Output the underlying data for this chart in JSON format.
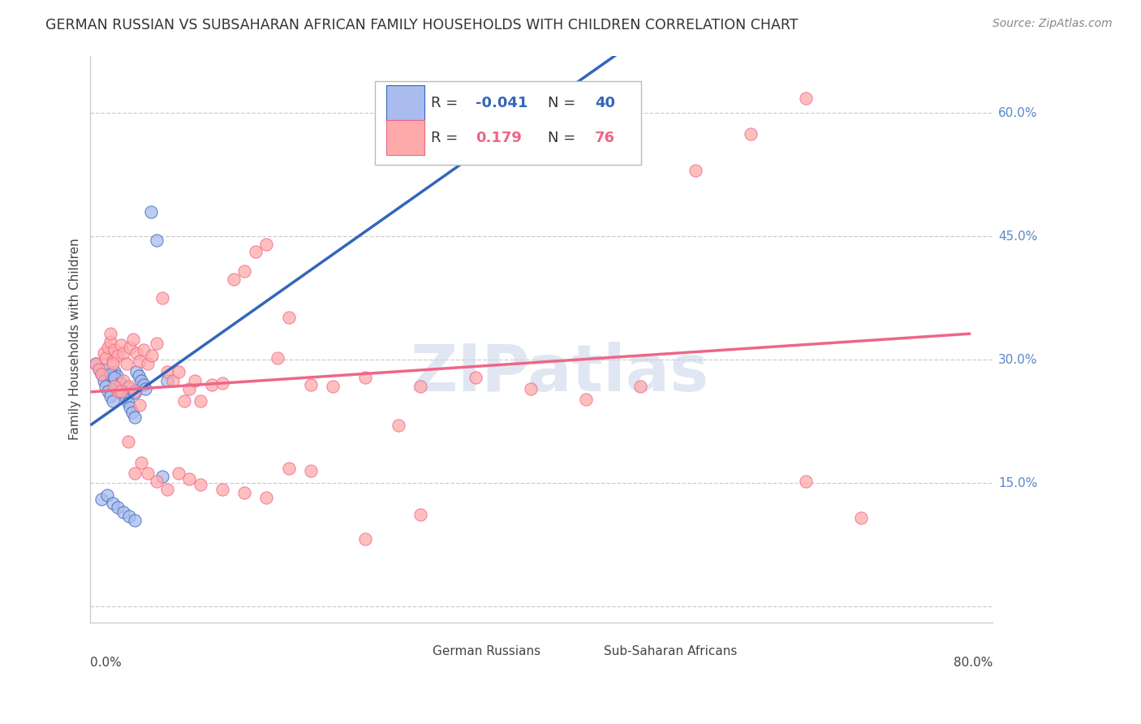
{
  "title": "GERMAN RUSSIAN VS SUBSAHARAN AFRICAN FAMILY HOUSEHOLDS WITH CHILDREN CORRELATION CHART",
  "source": "Source: ZipAtlas.com",
  "ylabel": "Family Households with Children",
  "xlim": [
    0.0,
    0.82
  ],
  "ylim": [
    -0.02,
    0.67
  ],
  "ytick_vals": [
    0.0,
    0.15,
    0.3,
    0.45,
    0.6
  ],
  "ytick_labels": [
    "",
    "15.0%",
    "30.0%",
    "45.0%",
    "60.0%"
  ],
  "color_blue_fill": "#AABBEE",
  "color_blue_line": "#3366BB",
  "color_pink_fill": "#FFAAAA",
  "color_pink_line": "#EE6688",
  "color_ytick": "#5588CC",
  "watermark": "ZIPatlas",
  "legend_R1": "-0.041",
  "legend_N1": "40",
  "legend_R2": "0.179",
  "legend_N2": "76",
  "gr_x": [
    0.005,
    0.008,
    0.01,
    0.012,
    0.014,
    0.016,
    0.018,
    0.02,
    0.022,
    0.024,
    0.026,
    0.028,
    0.03,
    0.032,
    0.034,
    0.036,
    0.038,
    0.04,
    0.042,
    0.044,
    0.046,
    0.048,
    0.05,
    0.055,
    0.06,
    0.065,
    0.07,
    0.01,
    0.015,
    0.02,
    0.025,
    0.03,
    0.035,
    0.04,
    0.012,
    0.018,
    0.022,
    0.028,
    0.034,
    0.04
  ],
  "gr_y": [
    0.295,
    0.288,
    0.282,
    0.275,
    0.268,
    0.262,
    0.256,
    0.25,
    0.285,
    0.28,
    0.272,
    0.266,
    0.26,
    0.254,
    0.248,
    0.242,
    0.236,
    0.23,
    0.285,
    0.28,
    0.275,
    0.27,
    0.265,
    0.48,
    0.445,
    0.158,
    0.275,
    0.13,
    0.135,
    0.125,
    0.12,
    0.115,
    0.11,
    0.105,
    0.288,
    0.282,
    0.278,
    0.272,
    0.266,
    0.26
  ],
  "ssa_x": [
    0.005,
    0.008,
    0.01,
    0.012,
    0.014,
    0.016,
    0.018,
    0.02,
    0.022,
    0.025,
    0.028,
    0.03,
    0.033,
    0.036,
    0.039,
    0.042,
    0.045,
    0.048,
    0.052,
    0.056,
    0.06,
    0.065,
    0.07,
    0.075,
    0.08,
    0.085,
    0.09,
    0.095,
    0.1,
    0.11,
    0.12,
    0.13,
    0.14,
    0.15,
    0.16,
    0.17,
    0.18,
    0.2,
    0.22,
    0.25,
    0.28,
    0.3,
    0.35,
    0.4,
    0.45,
    0.5,
    0.55,
    0.6,
    0.65,
    0.7,
    0.02,
    0.025,
    0.03,
    0.035,
    0.04,
    0.045,
    0.018,
    0.022,
    0.028,
    0.034,
    0.04,
    0.046,
    0.052,
    0.06,
    0.07,
    0.08,
    0.09,
    0.1,
    0.12,
    0.14,
    0.16,
    0.18,
    0.2,
    0.25,
    0.3,
    0.65
  ],
  "ssa_y": [
    0.295,
    0.288,
    0.282,
    0.308,
    0.302,
    0.315,
    0.322,
    0.298,
    0.312,
    0.305,
    0.318,
    0.308,
    0.295,
    0.315,
    0.325,
    0.308,
    0.298,
    0.312,
    0.295,
    0.305,
    0.32,
    0.375,
    0.285,
    0.275,
    0.285,
    0.25,
    0.265,
    0.275,
    0.25,
    0.27,
    0.272,
    0.398,
    0.408,
    0.432,
    0.44,
    0.302,
    0.352,
    0.27,
    0.268,
    0.278,
    0.22,
    0.268,
    0.278,
    0.265,
    0.252,
    0.268,
    0.53,
    0.575,
    0.152,
    0.108,
    0.295,
    0.262,
    0.275,
    0.268,
    0.262,
    0.245,
    0.332,
    0.268,
    0.262,
    0.2,
    0.162,
    0.175,
    0.162,
    0.152,
    0.142,
    0.162,
    0.155,
    0.148,
    0.142,
    0.138,
    0.132,
    0.168,
    0.165,
    0.082,
    0.112,
    0.618
  ]
}
